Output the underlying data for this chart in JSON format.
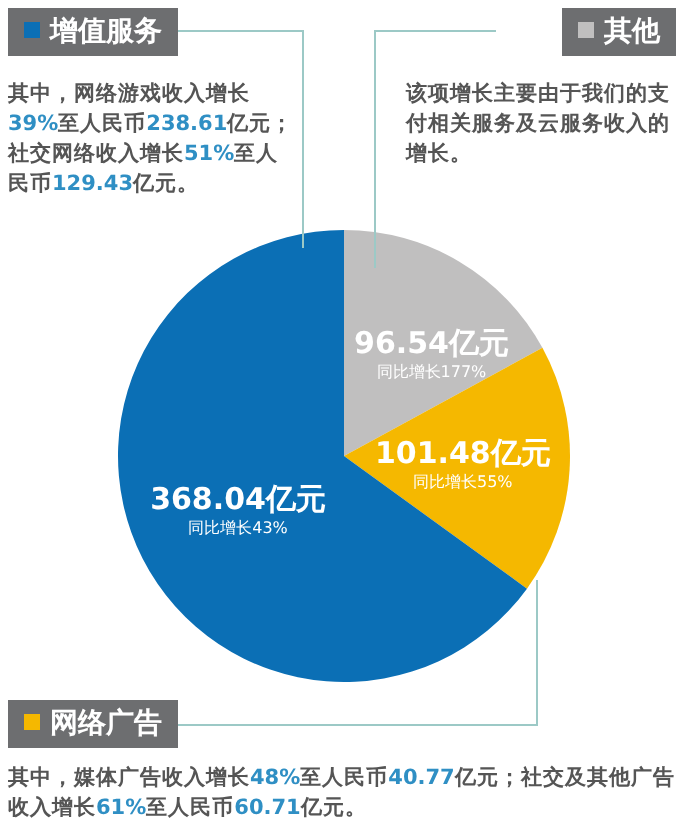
{
  "chart_data": {
    "type": "pie",
    "categories": [
      "其他",
      "网络广告",
      "增值服务"
    ],
    "values": [
      96.54,
      101.48,
      368.04
    ],
    "colors": [
      "#c0bfbf",
      "#f5b800",
      "#0b6fb5"
    ],
    "value_labels": [
      "96.54亿元",
      "101.48亿元",
      "368.04亿元"
    ],
    "legend": "top",
    "annotations": [
      {
        "text": "同比增长177%",
        "x": "其他"
      },
      {
        "text": "同比增长55%",
        "x": "网络广告"
      },
      {
        "text": "同比增长43%",
        "x": "增值服务"
      },
      "该项增长主要由于我们的支付相关服务及云服务收入的增长。",
      "其中，媒体广告收入增长48%至人民币40.77亿元；社交及其他广告收入增长61%至人民币60.71亿元。",
      "其中，网络游戏收入增长39%至人民币238.61亿元；社交网络收入增长51%至人民币129.43亿元。"
    ]
  }
}
